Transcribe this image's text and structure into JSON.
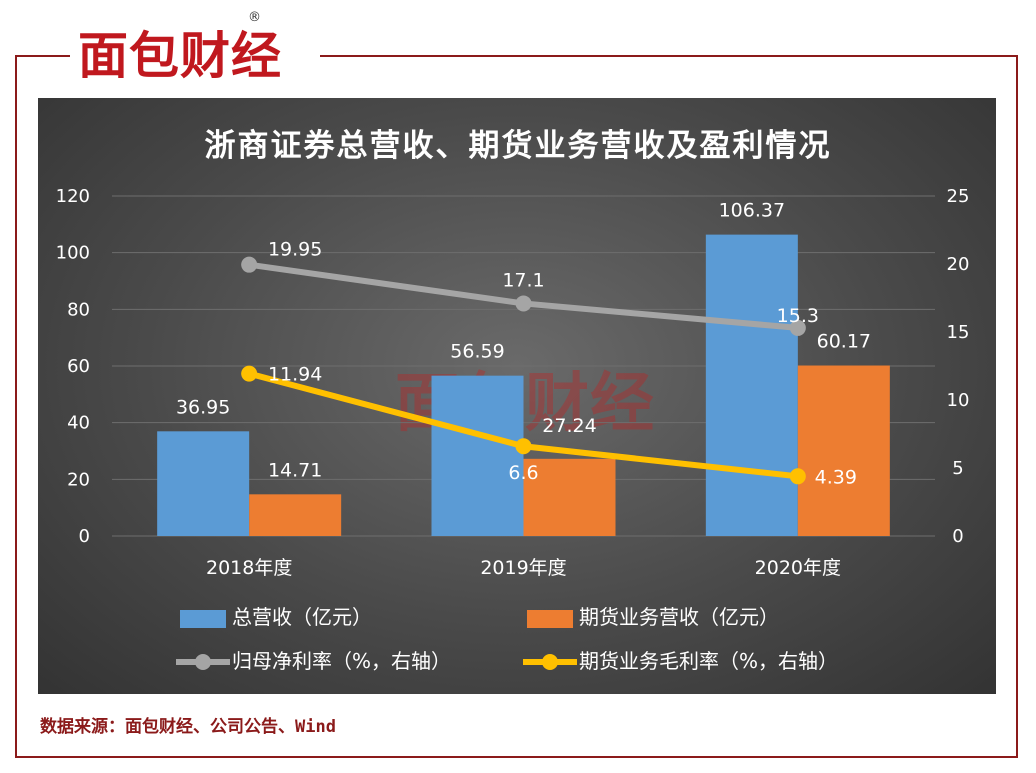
{
  "brand": {
    "logo_text": "面包财经",
    "registered_mark": "®"
  },
  "source": "数据来源：面包财经、公司公告、Wind",
  "chart_data": {
    "type": "bar",
    "title": "浙商证券总营收、期货业务营收及盈利情况",
    "categories": [
      "2018年度",
      "2019年度",
      "2020年度"
    ],
    "ylim": [
      0,
      120
    ],
    "y_ticks": [
      "0",
      "20",
      "40",
      "60",
      "80",
      "100",
      "120"
    ],
    "y2lim": [
      0,
      25
    ],
    "y2_ticks": [
      "0",
      "5",
      "10",
      "15",
      "20",
      "25"
    ],
    "grid": true,
    "legend_position": "bottom",
    "series": [
      {
        "name": "总营收（亿元）",
        "type": "bar",
        "axis": "left",
        "color": "#5b9bd5",
        "values": [
          36.95,
          56.59,
          106.37
        ],
        "labels": [
          "36.95",
          "56.59",
          "106.37"
        ]
      },
      {
        "name": "期货业务营收（亿元）",
        "type": "bar",
        "axis": "left",
        "color": "#ed7d31",
        "values": [
          14.71,
          27.24,
          60.17
        ],
        "labels": [
          "14.71",
          "27.24",
          "60.17"
        ]
      },
      {
        "name": "归母净利率（%，右轴）",
        "type": "line",
        "axis": "right",
        "color": "#a5a5a5",
        "values": [
          19.95,
          17.1,
          15.3
        ],
        "labels": [
          "19.95",
          "17.1",
          "15.3"
        ]
      },
      {
        "name": "期货业务毛利率（%，右轴）",
        "type": "line",
        "axis": "right",
        "color": "#ffc000",
        "values": [
          11.94,
          6.6,
          4.39
        ],
        "labels": [
          "11.94",
          "6.6",
          "4.39"
        ]
      }
    ]
  }
}
